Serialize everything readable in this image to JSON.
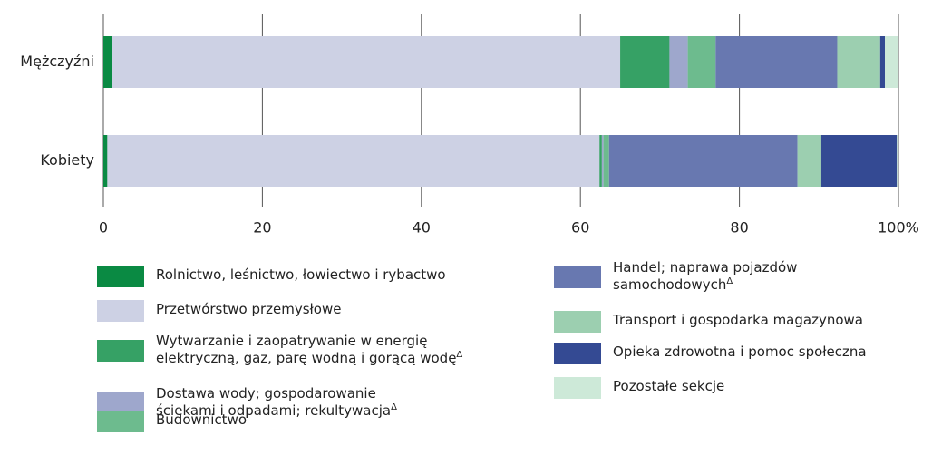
{
  "chart_data": {
    "type": "stacked-bar-horizontal",
    "categories": [
      "Mężczyźni",
      "Kobiety"
    ],
    "xlim": [
      0,
      100
    ],
    "xticks": [
      0,
      20,
      40,
      60,
      80,
      {
        "value": 100,
        "label": "100%"
      }
    ],
    "grid": true,
    "series": [
      {
        "name": "Rolnictwo, leśnictwo, łowiectwo i rybactwo",
        "color": "#0a8a43",
        "values": [
          1.1,
          0.5
        ]
      },
      {
        "name": "Przetwórstwo przemysłowe",
        "color": "#cdd1e4",
        "values": [
          63.9,
          61.9
        ]
      },
      {
        "name": "Wytwarzanie i zaopatrywanie w energię elektryczną, gaz, parę wodną i gorącą wodęΔ",
        "color": "#36a165",
        "values": [
          6.2,
          0.3
        ]
      },
      {
        "name": "Dostawa wody; gospodarowanie ściekami i odpadami; rekultywacjaΔ",
        "color": "#9ea7cc",
        "values": [
          2.3,
          0.2
        ]
      },
      {
        "name": "Budownictwo",
        "color": "#6dbb8e",
        "values": [
          3.5,
          0.7
        ]
      },
      {
        "name": "Handel; naprawa pojazdów samochodowychΔ",
        "color": "#6878b0",
        "values": [
          15.3,
          23.7
        ]
      },
      {
        "name": "Transport i gospodarka magazynowa",
        "color": "#9ccfb0",
        "values": [
          5.4,
          3.0
        ]
      },
      {
        "name": "Opieka zdrowotna i pomoc społeczna",
        "color": "#344a93",
        "values": [
          0.6,
          9.5
        ]
      },
      {
        "name": "Pozostałe sekcje",
        "color": "#cde9d8",
        "values": [
          1.7,
          0.2
        ]
      }
    ]
  }
}
